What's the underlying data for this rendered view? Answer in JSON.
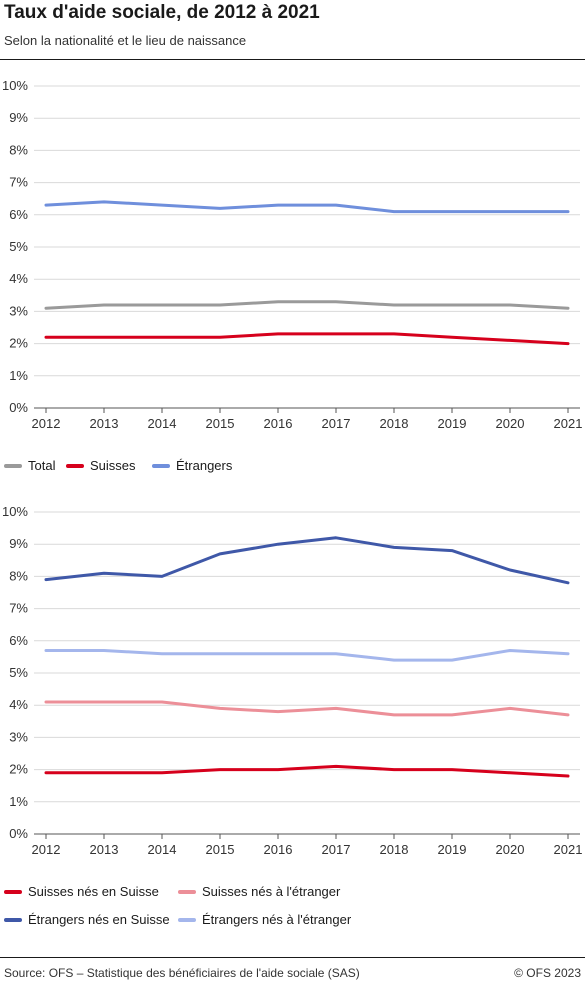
{
  "title": "Taux d'aide sociale, de 2012 à 2021",
  "subtitle": "Selon la nationalité et le lieu de naissance",
  "footer": {
    "source": "Source: OFS – Statistique des bénéficiaires de l'aide sociale (SAS)",
    "copyright": "© OFS 2023"
  },
  "chart_data": [
    {
      "type": "line",
      "x": [
        "2012",
        "2013",
        "2014",
        "2015",
        "2016",
        "2017",
        "2018",
        "2019",
        "2020",
        "2021"
      ],
      "ylim": [
        0,
        10
      ],
      "yticks": [
        "0%",
        "1%",
        "2%",
        "3%",
        "4%",
        "5%",
        "6%",
        "7%",
        "8%",
        "9%",
        "10%"
      ],
      "grid": true,
      "legend_position": "bottom",
      "series": [
        {
          "name": "Total",
          "color": "#9a9a9a",
          "values": [
            3.1,
            3.2,
            3.2,
            3.2,
            3.3,
            3.3,
            3.2,
            3.2,
            3.2,
            3.1
          ]
        },
        {
          "name": "Suisses",
          "color": "#d6001c",
          "values": [
            2.2,
            2.2,
            2.2,
            2.2,
            2.3,
            2.3,
            2.3,
            2.2,
            2.1,
            2.0
          ]
        },
        {
          "name": "Étrangers",
          "color": "#6f8fdc",
          "values": [
            6.3,
            6.4,
            6.3,
            6.2,
            6.3,
            6.3,
            6.1,
            6.1,
            6.1,
            6.1
          ]
        }
      ]
    },
    {
      "type": "line",
      "x": [
        "2012",
        "2013",
        "2014",
        "2015",
        "2016",
        "2017",
        "2018",
        "2019",
        "2020",
        "2021"
      ],
      "ylim": [
        0,
        10
      ],
      "yticks": [
        "0%",
        "1%",
        "2%",
        "3%",
        "4%",
        "5%",
        "6%",
        "7%",
        "8%",
        "9%",
        "10%"
      ],
      "grid": true,
      "legend_position": "bottom",
      "series": [
        {
          "name": "Suisses nés en Suisse",
          "color": "#d6001c",
          "values": [
            1.9,
            1.9,
            1.9,
            2.0,
            2.0,
            2.1,
            2.0,
            2.0,
            1.9,
            1.8
          ]
        },
        {
          "name": "Suisses nés à l'étranger",
          "color": "#ec8f98",
          "values": [
            4.1,
            4.1,
            4.1,
            3.9,
            3.8,
            3.9,
            3.7,
            3.7,
            3.9,
            3.7
          ]
        },
        {
          "name": "Étrangers nés en Suisse",
          "color": "#3f58a8",
          "values": [
            7.9,
            8.1,
            8.0,
            8.7,
            9.0,
            9.2,
            8.9,
            8.8,
            8.2,
            7.8
          ]
        },
        {
          "name": "Étrangers nés à l'étranger",
          "color": "#a4b6ec",
          "values": [
            5.7,
            5.7,
            5.6,
            5.6,
            5.6,
            5.6,
            5.4,
            5.4,
            5.7,
            5.6
          ]
        }
      ]
    }
  ]
}
